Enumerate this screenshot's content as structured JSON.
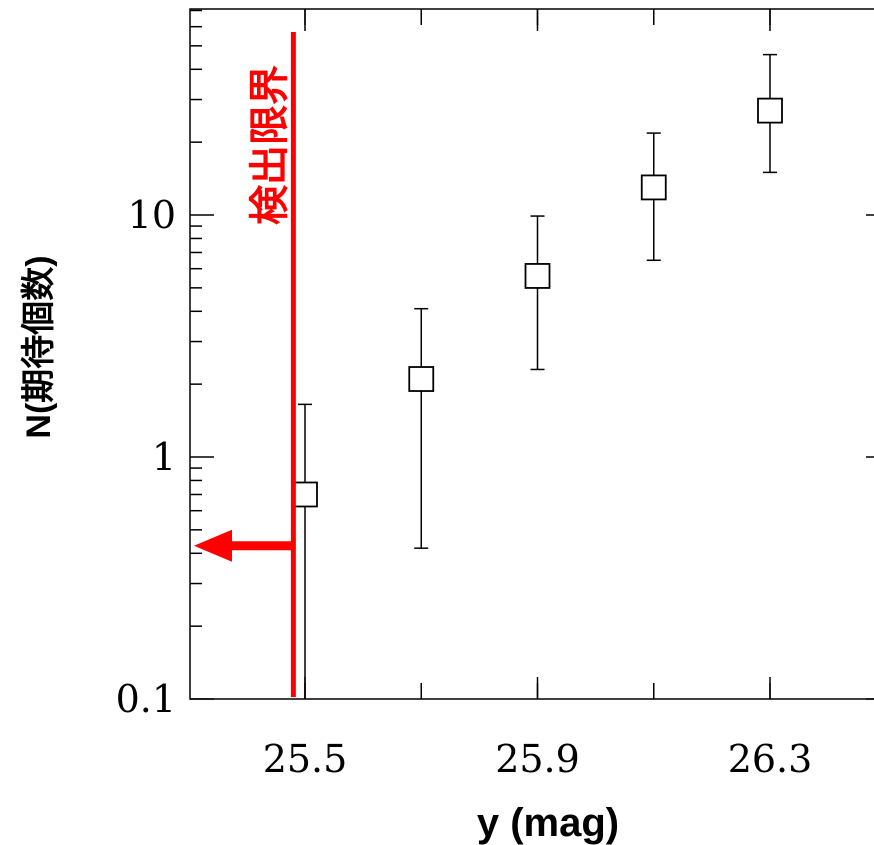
{
  "chart_data": {
    "type": "scatter",
    "xlabel": "y (mag)",
    "ylabel": "N(期待個数)",
    "yscale": "log",
    "xlim": [
      25.2,
      26.5
    ],
    "ylim": [
      0.1,
      100
    ],
    "x_ticks": [
      {
        "value": 25.5,
        "label": "25.5"
      },
      {
        "value": 25.9,
        "label": "25.9"
      },
      {
        "value": 26.3,
        "label": "26.3"
      }
    ],
    "y_ticks": [
      {
        "value": 0.1,
        "label": "0.1"
      },
      {
        "value": 1,
        "label": "1"
      },
      {
        "value": 10,
        "label": "10"
      }
    ],
    "marker": "open-square",
    "points": [
      {
        "x": 25.5,
        "y": 0.7,
        "y_low": 0.1,
        "y_high": 1.65
      },
      {
        "x": 25.7,
        "y": 2.1,
        "y_low": 0.42,
        "y_high": 4.1
      },
      {
        "x": 25.9,
        "y": 5.6,
        "y_low": 2.3,
        "y_high": 9.9
      },
      {
        "x": 26.1,
        "y": 13.0,
        "y_low": 6.5,
        "y_high": 21.8
      },
      {
        "x": 26.3,
        "y": 27.0,
        "y_low": 15.0,
        "y_high": 46.0
      }
    ],
    "detection_limit": {
      "x": 25.48,
      "label": "検出限界",
      "color": "#ff0000",
      "arrow_direction": "left",
      "arrow_y": 0.43
    }
  }
}
